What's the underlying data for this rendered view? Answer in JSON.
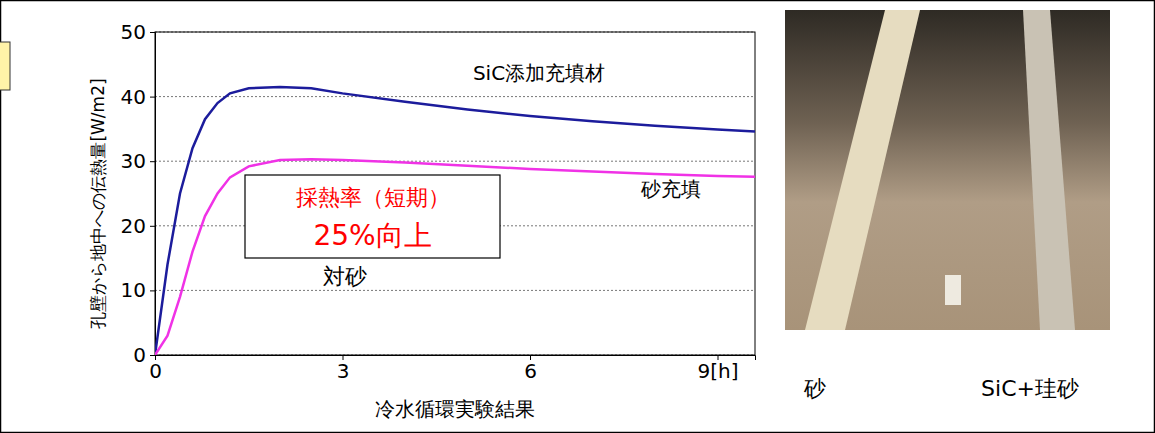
{
  "chart_data": {
    "type": "line",
    "x_label": "冷水循環実験結果",
    "y_label": "孔壁から地中への伝熱量[W/m2]",
    "x": [
      0,
      0.2,
      0.4,
      0.6,
      0.8,
      1.0,
      1.2,
      1.5,
      2.0,
      2.5,
      3,
      4,
      5,
      6,
      7,
      8,
      9,
      9.6
    ],
    "series": [
      {
        "name": "SiC添加充填材",
        "color": "#1c1c9c",
        "values": [
          0,
          14,
          25,
          32,
          36.5,
          39,
          40.5,
          41.3,
          41.5,
          41.3,
          40.5,
          39.2,
          38,
          37,
          36.2,
          35.5,
          34.9,
          34.6
        ]
      },
      {
        "name": "砂充填",
        "color": "#f032e6",
        "values": [
          0,
          3,
          9,
          16,
          21.5,
          25,
          27.5,
          29.2,
          30.2,
          30.3,
          30.2,
          29.8,
          29.3,
          28.8,
          28.4,
          28.0,
          27.7,
          27.6
        ]
      }
    ],
    "xlim": [
      0,
      9.6
    ],
    "xticks": [
      0,
      3,
      6,
      {
        "value": 9,
        "label": "9[h]"
      }
    ],
    "ylim": [
      0,
      50
    ],
    "yticks": [
      0,
      10,
      20,
      30,
      40,
      50
    ],
    "grid": true,
    "annotations": [
      "採熱率（短期）",
      "25%向上",
      "対砂"
    ]
  },
  "photo": {
    "labels": [
      "砂",
      "SiC+珪砂"
    ]
  }
}
